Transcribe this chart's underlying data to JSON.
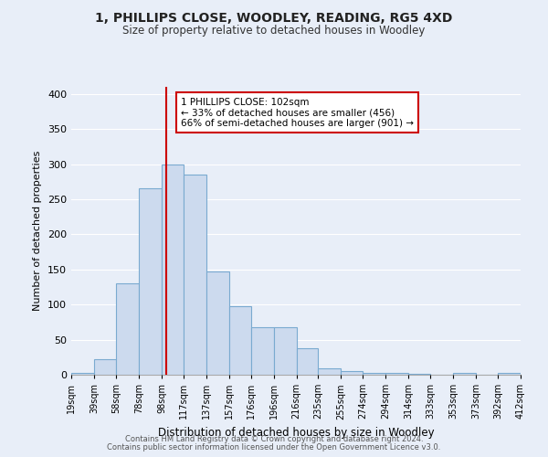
{
  "title": "1, PHILLIPS CLOSE, WOODLEY, READING, RG5 4XD",
  "subtitle": "Size of property relative to detached houses in Woodley",
  "xlabel": "Distribution of detached houses by size in Woodley",
  "ylabel": "Number of detached properties",
  "bar_color": "#ccdaee",
  "bar_edge_color": "#7aaad0",
  "background_color": "#e8eef8",
  "grid_color": "#ffffff",
  "bin_edges": [
    19,
    39,
    58,
    78,
    98,
    117,
    137,
    157,
    176,
    196,
    216,
    235,
    255,
    274,
    294,
    314,
    333,
    353,
    373,
    392,
    412
  ],
  "bin_labels": [
    "19sqm",
    "39sqm",
    "58sqm",
    "78sqm",
    "98sqm",
    "117sqm",
    "137sqm",
    "157sqm",
    "176sqm",
    "196sqm",
    "216sqm",
    "235sqm",
    "255sqm",
    "274sqm",
    "294sqm",
    "314sqm",
    "333sqm",
    "353sqm",
    "373sqm",
    "392sqm",
    "412sqm"
  ],
  "bar_heights": [
    2,
    22,
    130,
    265,
    300,
    285,
    147,
    98,
    68,
    68,
    38,
    9,
    5,
    3,
    2,
    1,
    0,
    2,
    0,
    2
  ],
  "property_value": 102,
  "vline_color": "#cc0000",
  "annotation_text": "1 PHILLIPS CLOSE: 102sqm\n← 33% of detached houses are smaller (456)\n66% of semi-detached houses are larger (901) →",
  "annotation_box_color": "#ffffff",
  "annotation_box_edge": "#cc0000",
  "ylim": [
    0,
    410
  ],
  "yticks": [
    0,
    50,
    100,
    150,
    200,
    250,
    300,
    350,
    400
  ],
  "footer_line1": "Contains HM Land Registry data © Crown copyright and database right 2024.",
  "footer_line2": "Contains public sector information licensed under the Open Government Licence v3.0."
}
